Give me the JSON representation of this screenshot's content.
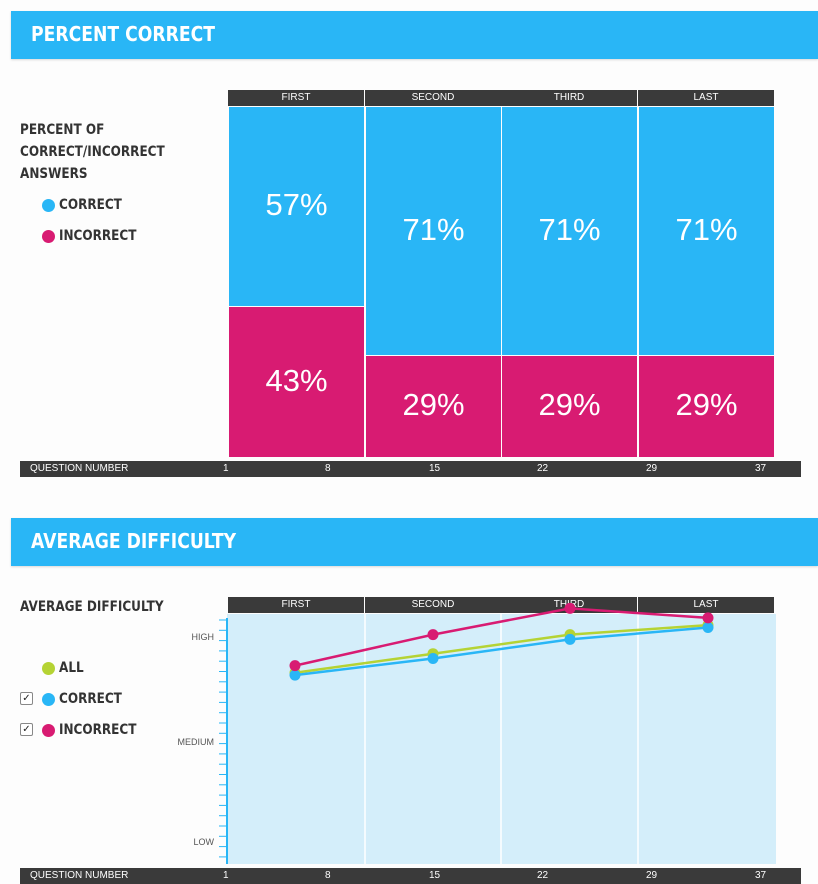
{
  "sections": {
    "percent_correct": {
      "title": "PERCENT CORRECT"
    },
    "average_difficulty": {
      "title": "AVERAGE DIFFICULTY"
    }
  },
  "percent_panel": {
    "side_title": [
      "PERCENT OF",
      "CORRECT/INCORRECT",
      "ANSWERS"
    ],
    "legend": [
      {
        "label": "CORRECT",
        "color": "#29b6f6"
      },
      {
        "label": "INCORRECT",
        "color": "#d81b72"
      }
    ]
  },
  "difficulty_panel": {
    "side_title": "AVERAGE DIFFICULTY",
    "legend": [
      {
        "label": "ALL",
        "color": "#b5d334",
        "checkbox": false
      },
      {
        "label": "CORRECT",
        "color": "#29b6f6",
        "checkbox": true,
        "checked": true
      },
      {
        "label": "INCORRECT",
        "color": "#d81b72",
        "checkbox": true,
        "checked": true
      }
    ],
    "checkmark": "✓"
  },
  "question_axis": {
    "label": "QUESTION NUMBER",
    "ticks": [
      "1",
      "8",
      "15",
      "22",
      "29",
      "37"
    ]
  },
  "colors": {
    "banner": "#29b6f6",
    "correct": "#29b6f6",
    "incorrect": "#d81b72",
    "all": "#b5d334",
    "plot_bg": "#d4eefa",
    "header_bar": "#3a3a3a"
  },
  "chart_data": [
    {
      "type": "bar",
      "title": "PERCENT CORRECT",
      "categories": [
        "FIRST",
        "SECOND",
        "THIRD",
        "LAST"
      ],
      "series": [
        {
          "name": "CORRECT",
          "values": [
            57,
            71,
            71,
            71
          ]
        },
        {
          "name": "INCORRECT",
          "values": [
            43,
            29,
            29,
            29
          ]
        }
      ],
      "labels": {
        "CORRECT": [
          "57%",
          "71%",
          "71%",
          "71%"
        ],
        "INCORRECT": [
          "43%",
          "29%",
          "29%",
          "29%"
        ]
      },
      "ylim": [
        0,
        100
      ],
      "xlabel": "QUESTION NUMBER"
    },
    {
      "type": "line",
      "title": "AVERAGE DIFFICULTY",
      "categories": [
        "FIRST",
        "SECOND",
        "THIRD",
        "LAST"
      ],
      "yticks": [
        "HIGH",
        "MEDIUM",
        "LOW"
      ],
      "ylim": [
        0,
        1
      ],
      "series": [
        {
          "name": "ALL",
          "values": [
            0.71,
            0.79,
            0.87,
            0.91
          ]
        },
        {
          "name": "CORRECT",
          "values": [
            0.7,
            0.77,
            0.85,
            0.9
          ]
        },
        {
          "name": "INCORRECT",
          "values": [
            0.74,
            0.87,
            0.98,
            0.94
          ]
        }
      ],
      "xlabel": "QUESTION NUMBER"
    }
  ]
}
